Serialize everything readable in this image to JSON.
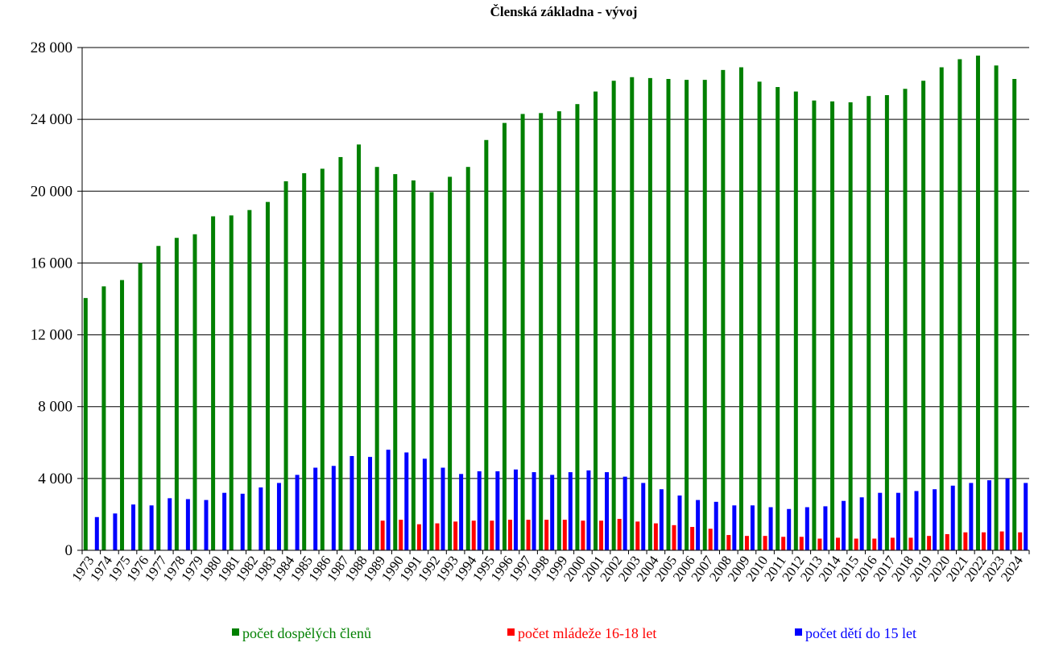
{
  "chart_data": {
    "type": "bar",
    "title": "Členská základna - vývoj",
    "xlabel": "",
    "ylabel": "",
    "ylim": [
      0,
      28000
    ],
    "yticks": [
      0,
      4000,
      8000,
      12000,
      16000,
      20000,
      24000,
      28000
    ],
    "ytick_labels": [
      "0",
      "4 000",
      "8 000",
      "12 000",
      "16 000",
      "20 000",
      "24 000",
      "28 000"
    ],
    "grid": "horizontal",
    "legend_position": "bottom",
    "categories": [
      "1973",
      "1974",
      "1975",
      "1976",
      "1977",
      "1978",
      "1979",
      "1980",
      "1981",
      "1982",
      "1983",
      "1984",
      "1985",
      "1986",
      "1987",
      "1988",
      "1989",
      "1990",
      "1991",
      "1992",
      "1993",
      "1994",
      "1995",
      "1996",
      "1997",
      "1998",
      "1999",
      "2000",
      "2001",
      "2002",
      "2003",
      "2004",
      "2005",
      "2006",
      "2007",
      "2008",
      "2009",
      "2010",
      "2011",
      "2012",
      "2013",
      "2014",
      "2015",
      "2016",
      "2017",
      "2018",
      "2019",
      "2020",
      "2021",
      "2022",
      "2023",
      "2024"
    ],
    "series": [
      {
        "name": "počet dospělých členů",
        "color": "#008000",
        "values": [
          14050,
          14700,
          15050,
          16000,
          16950,
          17400,
          17600,
          18600,
          18650,
          18950,
          19400,
          20550,
          21000,
          21250,
          21900,
          22600,
          21350,
          20950,
          20600,
          19950,
          20800,
          21350,
          22850,
          23800,
          24300,
          24350,
          24450,
          24850,
          25550,
          26150,
          26350,
          26300,
          26250,
          26200,
          26200,
          26750,
          26900,
          26100,
          25800,
          25550,
          25050,
          25000,
          24950,
          25300,
          25350,
          25700,
          26150,
          26900,
          27350,
          27550,
          27000,
          26250
        ]
      },
      {
        "name": "počet mládeže 16-18 let",
        "color": "#ff0000",
        "values": [
          null,
          null,
          null,
          null,
          null,
          null,
          null,
          null,
          null,
          null,
          null,
          null,
          null,
          null,
          null,
          null,
          1650,
          1700,
          1450,
          1500,
          1600,
          1650,
          1650,
          1700,
          1700,
          1700,
          1700,
          1650,
          1650,
          1750,
          1600,
          1500,
          1400,
          1300,
          1200,
          850,
          800,
          800,
          750,
          750,
          650,
          700,
          650,
          650,
          700,
          700,
          800,
          900,
          1000,
          1000,
          1050,
          1000
        ]
      },
      {
        "name": "počet dětí do 15 let",
        "color": "#0000ff",
        "values": [
          1850,
          2050,
          2550,
          2500,
          2900,
          2850,
          2800,
          3200,
          3150,
          3500,
          3750,
          4200,
          4600,
          4700,
          5250,
          5200,
          5600,
          5450,
          5100,
          4600,
          4250,
          4400,
          4400,
          4500,
          4350,
          4200,
          4350,
          4450,
          4350,
          4100,
          3750,
          3400,
          3050,
          2800,
          2700,
          2500,
          2500,
          2400,
          2300,
          2400,
          2450,
          2750,
          2950,
          3200,
          3200,
          3300,
          3400,
          3600,
          3750,
          3900,
          4000,
          3750
        ]
      }
    ]
  }
}
